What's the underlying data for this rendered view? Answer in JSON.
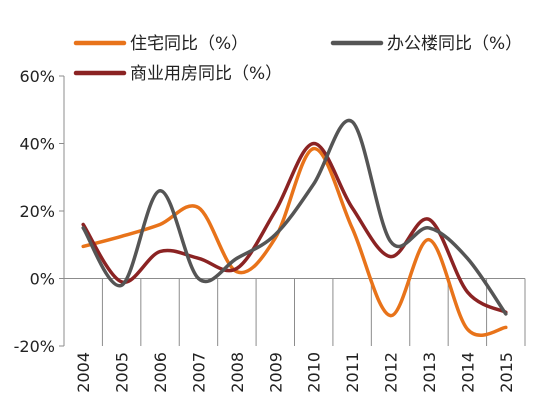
{
  "chart_data": {
    "type": "line",
    "categories": [
      "2004",
      "2005",
      "2006",
      "2007",
      "2008",
      "2009",
      "2010",
      "2011",
      "2012",
      "2013",
      "2014",
      "2015"
    ],
    "ylim": [
      -20,
      60
    ],
    "yticks": [
      -20,
      0,
      20,
      40,
      60
    ],
    "ytick_labels": [
      "-20%",
      "0%",
      "20%",
      "40%",
      "60%"
    ],
    "legend_position": "top",
    "smooth": true,
    "grid": false,
    "series": [
      {
        "name": "住宅同比（%）",
        "color": "#E8731A",
        "values": [
          9.5,
          12.5,
          16,
          21,
          2,
          12,
          38.5,
          15,
          -11,
          11.5,
          -15,
          -14.5
        ]
      },
      {
        "name": "办公楼同比（%）",
        "color": "#555555",
        "values": [
          15,
          -2,
          26,
          0,
          6,
          13,
          28,
          46.5,
          11,
          15,
          6,
          -10.5
        ]
      },
      {
        "name": "商业用房同比（%）",
        "color": "#8B2323",
        "values": [
          16,
          -1,
          8,
          6,
          3,
          20,
          40,
          21,
          6.5,
          17.5,
          -4,
          -10
        ]
      }
    ]
  }
}
